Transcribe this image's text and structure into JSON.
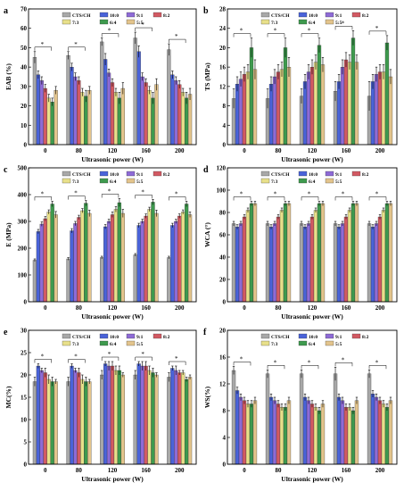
{
  "panel_order": [
    "a",
    "b",
    "c",
    "d",
    "e",
    "f"
  ],
  "series_names": [
    "CTS/CH",
    "10:0",
    "9:1",
    "8:2",
    "7:3",
    "6:4",
    "5:5"
  ],
  "colors": {
    "CTS/CH": "#a8a8a8",
    "10:0": "#4a63d9",
    "9:1": "#8e6bd6",
    "8:2": "#d25a63",
    "7:3": "#e8e08a",
    "6:4": "#3e9a4e",
    "5:5": "#e3c48c"
  },
  "chart_data": [
    {
      "type": "bar",
      "letter": "a",
      "categories": [
        "0",
        "80",
        "120",
        "160",
        "200"
      ],
      "xlabel": "Ultrasonic power (W)",
      "ylabel": "EAB (%)",
      "ylim": [
        0,
        70
      ],
      "yticks": [
        0,
        10,
        20,
        30,
        40,
        50,
        60,
        70
      ],
      "legend": "top",
      "series": [
        {
          "name": "CTS/CH",
          "values": [
            45,
            46,
            53,
            55,
            49
          ],
          "errors": [
            3,
            2,
            2,
            3,
            3
          ]
        },
        {
          "name": "10:0",
          "values": [
            36,
            40,
            44,
            48,
            36
          ],
          "errors": [
            2,
            2,
            3,
            3,
            2
          ]
        },
        {
          "name": "9:1",
          "values": [
            33,
            35,
            37,
            35,
            33
          ],
          "errors": [
            2,
            2,
            2,
            2,
            2
          ]
        },
        {
          "name": "8:2",
          "values": [
            29,
            33,
            32,
            32,
            31
          ],
          "errors": [
            2,
            2,
            2,
            2,
            2
          ]
        },
        {
          "name": "7:3",
          "values": [
            24,
            27,
            27,
            28,
            27
          ],
          "errors": [
            2,
            2,
            2,
            2,
            2
          ]
        },
        {
          "name": "6:4",
          "values": [
            22,
            25,
            24,
            24,
            24
          ],
          "errors": [
            2,
            3,
            3,
            3,
            3
          ]
        },
        {
          "name": "5:5",
          "values": [
            28,
            28,
            29,
            31,
            26
          ],
          "errors": [
            2,
            2,
            3,
            3,
            3
          ]
        }
      ]
    },
    {
      "type": "bar",
      "letter": "b",
      "categories": [
        "0",
        "80",
        "120",
        "160",
        "200"
      ],
      "xlabel": "Ultrasonic power (W)",
      "ylabel": "TS (MPa)",
      "ylim": [
        0,
        28
      ],
      "yticks": [
        0,
        4,
        8,
        12,
        16,
        20,
        24,
        28
      ],
      "legend": "top",
      "series": [
        {
          "name": "CTS/CH",
          "values": [
            9.5,
            9.5,
            10,
            11,
            10
          ],
          "errors": [
            2,
            2,
            1.5,
            2,
            3
          ]
        },
        {
          "name": "10:0",
          "values": [
            12.5,
            12.5,
            13,
            13,
            13
          ],
          "errors": [
            1.5,
            1.5,
            1.5,
            1.5,
            1.5
          ]
        },
        {
          "name": "9:1",
          "values": [
            13.5,
            14,
            15,
            16,
            14.5
          ],
          "errors": [
            1.5,
            1.5,
            1.5,
            1.5,
            1.5
          ]
        },
        {
          "name": "8:2",
          "values": [
            14.5,
            15,
            16,
            17.5,
            15
          ],
          "errors": [
            1.5,
            1.5,
            1.5,
            1.5,
            1.5
          ]
        },
        {
          "name": "7:3",
          "values": [
            15,
            15.5,
            17,
            17,
            15
          ],
          "errors": [
            1.5,
            1.5,
            1.5,
            1.5,
            1.5
          ]
        },
        {
          "name": "6:4",
          "values": [
            20,
            20,
            20.5,
            22,
            21
          ],
          "errors": [
            2,
            2,
            1.5,
            1.5,
            1.5
          ]
        },
        {
          "name": "5:5",
          "values": [
            15.5,
            16,
            16.5,
            17,
            14
          ],
          "errors": [
            2,
            2,
            1.5,
            1.5,
            1.5
          ]
        }
      ]
    },
    {
      "type": "bar",
      "letter": "c",
      "categories": [
        "0",
        "80",
        "120",
        "160",
        "200"
      ],
      "xlabel": "Ultrasonic power (W)",
      "ylabel": "E (MPa)",
      "ylim": [
        0,
        500
      ],
      "yticks": [
        0,
        100,
        200,
        300,
        400,
        500
      ],
      "legend": "top",
      "series": [
        {
          "name": "CTS/CH",
          "values": [
            155,
            160,
            165,
            175,
            165
          ],
          "errors": [
            5,
            5,
            5,
            5,
            5
          ]
        },
        {
          "name": "10:0",
          "values": [
            262,
            265,
            280,
            285,
            285
          ],
          "errors": [
            8,
            8,
            8,
            8,
            8
          ]
        },
        {
          "name": "9:1",
          "values": [
            290,
            292,
            300,
            300,
            300
          ],
          "errors": [
            8,
            8,
            8,
            8,
            8
          ]
        },
        {
          "name": "8:2",
          "values": [
            310,
            315,
            325,
            320,
            320
          ],
          "errors": [
            8,
            8,
            10,
            8,
            8
          ]
        },
        {
          "name": "7:3",
          "values": [
            335,
            340,
            345,
            345,
            335
          ],
          "errors": [
            8,
            8,
            10,
            8,
            8
          ]
        },
        {
          "name": "6:4",
          "values": [
            365,
            368,
            370,
            372,
            365
          ],
          "errors": [
            10,
            10,
            15,
            10,
            10
          ]
        },
        {
          "name": "5:5",
          "values": [
            325,
            330,
            330,
            330,
            325
          ],
          "errors": [
            12,
            12,
            15,
            12,
            10
          ]
        }
      ]
    },
    {
      "type": "bar",
      "letter": "d",
      "categories": [
        "0",
        "80",
        "120",
        "160",
        "200"
      ],
      "xlabel": "Ultrasonic power (W)",
      "ylabel": "WCA (°)",
      "ylim": [
        0,
        120
      ],
      "yticks": [
        0,
        20,
        40,
        60,
        80,
        100,
        120
      ],
      "legend": "top",
      "series": [
        {
          "name": "CTS/CH",
          "values": [
            70,
            70,
            70,
            70,
            70
          ],
          "errors": [
            2,
            2,
            2,
            2,
            2
          ]
        },
        {
          "name": "10:0",
          "values": [
            67,
            67,
            67,
            67,
            67
          ],
          "errors": [
            2,
            2,
            2,
            2,
            2
          ]
        },
        {
          "name": "9:1",
          "values": [
            70,
            70,
            70,
            70,
            70
          ],
          "errors": [
            2,
            2,
            2,
            2,
            2
          ]
        },
        {
          "name": "8:2",
          "values": [
            76,
            76,
            76,
            76,
            76
          ],
          "errors": [
            2,
            2,
            2,
            2,
            2
          ]
        },
        {
          "name": "7:3",
          "values": [
            82,
            82,
            82,
            82,
            82
          ],
          "errors": [
            2,
            2,
            2,
            2,
            2
          ]
        },
        {
          "name": "6:4",
          "values": [
            88,
            88,
            88,
            88,
            88
          ],
          "errors": [
            2,
            2,
            2,
            2,
            2
          ]
        },
        {
          "name": "5:5",
          "values": [
            88,
            88,
            88,
            88,
            88
          ],
          "errors": [
            2,
            2,
            2,
            2,
            2
          ]
        }
      ]
    },
    {
      "type": "bar",
      "letter": "e",
      "categories": [
        "0",
        "80",
        "120",
        "160",
        "200"
      ],
      "xlabel": "Ultrasonic power (W)",
      "ylabel": "MC(%)",
      "ylim": [
        0,
        30
      ],
      "yticks": [
        0,
        5,
        10,
        15,
        20,
        25,
        30
      ],
      "legend": "top",
      "series": [
        {
          "name": "CTS/CH",
          "values": [
            18.5,
            18.5,
            20,
            20,
            19.5
          ],
          "errors": [
            1,
            1,
            1,
            1,
            1
          ]
        },
        {
          "name": "10:0",
          "values": [
            22,
            22,
            22.5,
            22.5,
            21.5
          ],
          "errors": [
            0.5,
            0.5,
            0.5,
            0.5,
            0.5
          ]
        },
        {
          "name": "9:1",
          "values": [
            21,
            21,
            22,
            22,
            21
          ],
          "errors": [
            0.5,
            0.5,
            1,
            1,
            1
          ]
        },
        {
          "name": "8:2",
          "values": [
            20.5,
            20.5,
            22,
            22,
            20.5
          ],
          "errors": [
            1,
            1,
            1,
            1,
            0.5
          ]
        },
        {
          "name": "7:3",
          "values": [
            19,
            19,
            21,
            21,
            20.5
          ],
          "errors": [
            1,
            1,
            1,
            1,
            0.5
          ]
        },
        {
          "name": "6:4",
          "values": [
            18.5,
            18.5,
            21,
            20.5,
            19
          ],
          "errors": [
            1,
            1,
            1,
            1,
            0.5
          ]
        },
        {
          "name": "5:5",
          "values": [
            18.5,
            18.5,
            20,
            20,
            19.5
          ],
          "errors": [
            0.5,
            0.5,
            0.5,
            0.5,
            0.5
          ]
        }
      ]
    },
    {
      "type": "bar",
      "letter": "f",
      "categories": [
        "0",
        "80",
        "120",
        "160",
        "200"
      ],
      "xlabel": "Ultrasonic power (W)",
      "ylabel": "WS(%)",
      "ylim": [
        0,
        20
      ],
      "yticks": [
        0,
        4,
        8,
        12,
        16,
        20
      ],
      "legend": "top",
      "series": [
        {
          "name": "CTS/CH",
          "values": [
            14,
            13.5,
            13.5,
            13.5,
            13.5
          ],
          "errors": [
            0.6,
            0.6,
            0.6,
            1,
            0.6
          ]
        },
        {
          "name": "10:0",
          "values": [
            11,
            10,
            10,
            10,
            10.5
          ],
          "errors": [
            0.5,
            0.5,
            0.5,
            0.5,
            0.5
          ]
        },
        {
          "name": "9:1",
          "values": [
            10,
            9.5,
            9.5,
            9.5,
            10
          ],
          "errors": [
            0.5,
            0.5,
            0.5,
            0.5,
            0.5
          ]
        },
        {
          "name": "8:2",
          "values": [
            9.5,
            9,
            9,
            8.5,
            9.5
          ],
          "errors": [
            0.5,
            0.5,
            0.5,
            0.5,
            0.5
          ]
        },
        {
          "name": "7:3",
          "values": [
            9,
            8.5,
            8.5,
            8.5,
            9
          ],
          "errors": [
            0.5,
            0.5,
            0.5,
            0.5,
            0.5
          ]
        },
        {
          "name": "6:4",
          "values": [
            9,
            8.5,
            8,
            8,
            8.5
          ],
          "errors": [
            0.5,
            0.5,
            0.5,
            0.5,
            0.5
          ]
        },
        {
          "name": "5:5",
          "values": [
            9.5,
            9.5,
            9,
            9.5,
            9.5
          ],
          "errors": [
            0.5,
            0.5,
            0.5,
            0.5,
            0.5
          ]
        }
      ]
    }
  ]
}
